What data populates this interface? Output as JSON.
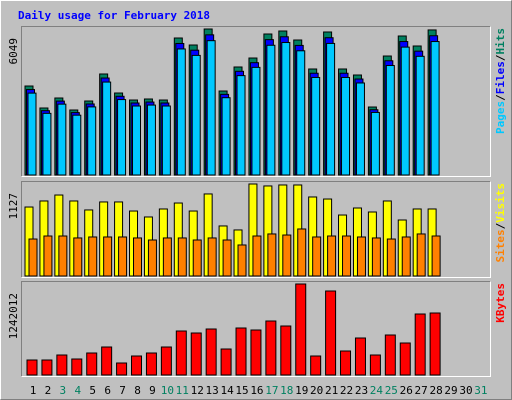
{
  "chart_data": [
    {
      "type": "bar",
      "title": "Daily usage for February 2018",
      "ylim": [
        0,
        6049
      ],
      "yticks": [
        6049
      ],
      "legend_separator": "/",
      "series": [
        {
          "name": "Hits",
          "color": "#008060",
          "values": [
            3687,
            2776,
            3190,
            2693,
            3066,
            4185,
            3397,
            3107,
            3149,
            3107,
            5676,
            5386,
            6049,
            3480,
            4475,
            4847,
            5842,
            5966,
            5593,
            4392,
            5925,
            4392,
            4143,
            2817,
            4930,
            5759,
            5345,
            6010,
            null,
            null,
            null
          ]
        },
        {
          "name": "Files",
          "color": "#0000ff",
          "values": [
            3540,
            2665,
            3062,
            2585,
            2943,
            4018,
            3261,
            2983,
            3023,
            2983,
            5449,
            5171,
            5807,
            3341,
            4296,
            4653,
            5608,
            5727,
            5369,
            4216,
            5688,
            4216,
            3977,
            2704,
            4733,
            5529,
            5131,
            5770,
            null,
            null,
            null
          ]
        },
        {
          "name": "Pages",
          "color": "#00c8ff",
          "values": [
            3392,
            2554,
            2935,
            2478,
            2821,
            3850,
            3125,
            2858,
            2897,
            2858,
            5222,
            4955,
            5565,
            3202,
            4117,
            4459,
            5375,
            5489,
            5146,
            4041,
            5451,
            4041,
            3812,
            2592,
            4536,
            5298,
            4917,
            5529,
            null,
            null,
            null
          ]
        }
      ]
    },
    {
      "type": "bar",
      "ylim": [
        0,
        1127
      ],
      "yticks": [
        1127
      ],
      "legend_separator": "/",
      "series": [
        {
          "name": "Visits",
          "color": "#ffff00",
          "values": [
            845,
            919,
            992,
            919,
            809,
            907,
            907,
            796,
            723,
            821,
            894,
            796,
            1005,
            613,
            564,
            1127,
            1103,
            1115,
            1115,
            968,
            943,
            747,
            833,
            784,
            919,
            686,
            821,
            821,
            null,
            null,
            null
          ]
        },
        {
          "name": "Sites",
          "color": "#ff8000",
          "values": [
            453,
            490,
            490,
            466,
            478,
            478,
            478,
            466,
            441,
            466,
            466,
            441,
            466,
            441,
            380,
            490,
            515,
            502,
            576,
            478,
            490,
            490,
            478,
            466,
            453,
            478,
            515,
            490,
            null,
            null,
            null
          ]
        }
      ]
    },
    {
      "type": "bar",
      "ylim": [
        0,
        1242012
      ],
      "yticks": [
        1242012
      ],
      "categories": [
        "1",
        "2",
        "3",
        "4",
        "5",
        "6",
        "7",
        "8",
        "9",
        "10",
        "11",
        "12",
        "13",
        "14",
        "15",
        "16",
        "17",
        "18",
        "19",
        "20",
        "21",
        "22",
        "23",
        "24",
        "25",
        "26",
        "27",
        "28",
        "29",
        "30",
        "31"
      ],
      "category_colors": [
        "#000000",
        "#000000",
        "#008060",
        "#008060",
        "#000000",
        "#000000",
        "#000000",
        "#000000",
        "#000000",
        "#008060",
        "#008060",
        "#000000",
        "#000000",
        "#000000",
        "#000000",
        "#000000",
        "#008060",
        "#008060",
        "#000000",
        "#000000",
        "#000000",
        "#000000",
        "#000000",
        "#008060",
        "#008060",
        "#000000",
        "#000000",
        "#000000",
        "#000000",
        "#000000",
        "#008060"
      ],
      "series": [
        {
          "name": "KBytes",
          "color": "#ff0000",
          "values": [
            204720,
            204720,
            272960,
            218368,
            300256,
            382144,
            163776,
            259312,
            300256,
            382144,
            600512,
            573216,
            627808,
            354848,
            641456,
            614160,
            736992,
            668752,
            1242012,
            259312,
            1146432,
            327552,
            504976,
            272960,
            545920,
            436736,
            832528,
            846176,
            null,
            null,
            null
          ]
        }
      ]
    }
  ]
}
